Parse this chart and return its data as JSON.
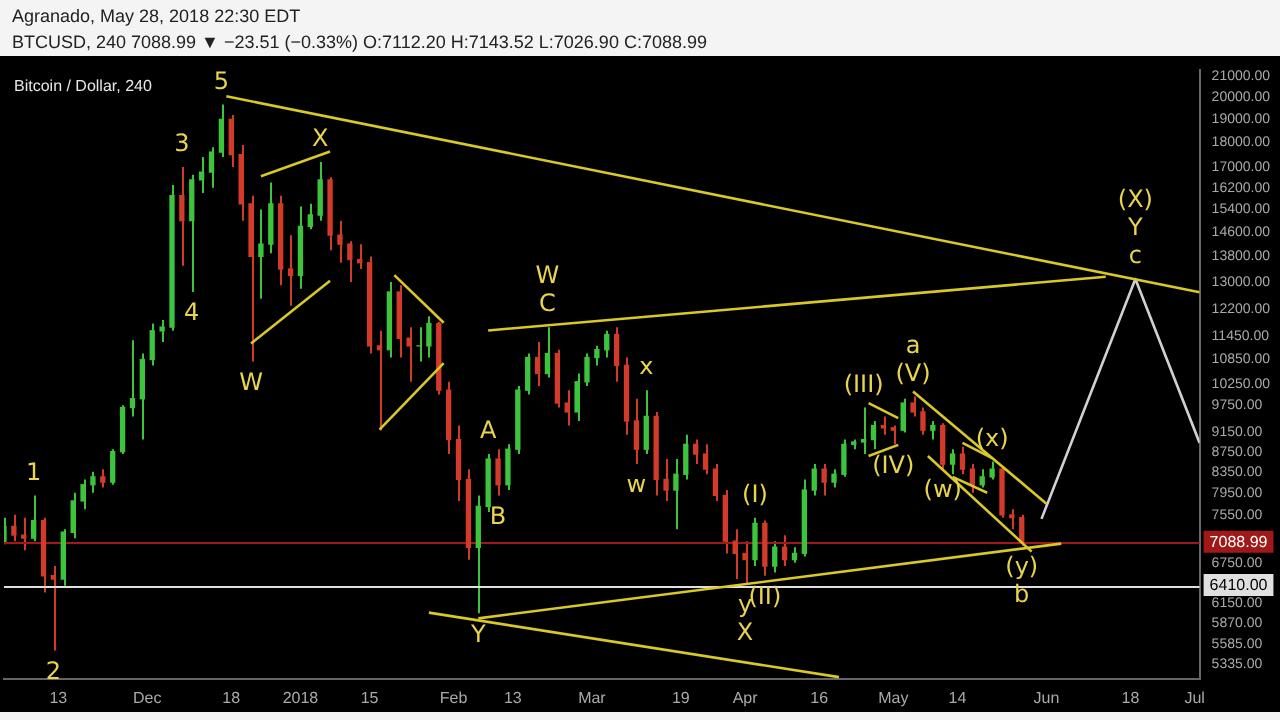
{
  "chart_data": {
    "type": "candlestick",
    "title": "Bitcoin / Dollar, 240",
    "annotations": [
      "Agranado, May 28, 2018 22:30 EDT",
      "BTCUSD, 240  7088.99 ▼ −23.51 (−0.33%)  O:7112.20  H:7143.52  L:7026.90  C:7088.99",
      {
        "text": "1",
        "x": "2017-11-08",
        "y": 7900
      },
      {
        "text": "2",
        "x": "2017-11-12",
        "y": 5500
      },
      {
        "text": "3",
        "x": "2017-12-08",
        "y": 17000
      },
      {
        "text": "4",
        "x": "2017-12-10",
        "y": 12700
      },
      {
        "text": "5",
        "x": "2017-12-16",
        "y": 19666
      },
      {
        "text": "W",
        "x": "2017-12-22",
        "y": 10800
      },
      {
        "text": "X",
        "x": "2018-01-05",
        "y": 17200
      },
      {
        "text": "C",
        "x": "2018-02-20",
        "y": 11700
      },
      {
        "text": "W",
        "x": "2018-02-20",
        "y": 11700
      },
      {
        "text": "A",
        "x": "2018-02-08",
        "y": 8700
      },
      {
        "text": "B",
        "x": "2018-02-10",
        "y": 7900
      },
      {
        "text": "Y",
        "x": "2018-02-06",
        "y": 6000
      },
      {
        "text": "w",
        "x": "2018-03-10",
        "y": 8500
      },
      {
        "text": "x",
        "x": "2018-03-12",
        "y": 10100
      },
      {
        "text": "(I)",
        "x": "2018-04-03",
        "y": 7500
      },
      {
        "text": "y",
        "x": "2018-04-01",
        "y": 6430
      },
      {
        "text": "(II)",
        "x": "2018-04-05",
        "y": 6550
      },
      {
        "text": "X",
        "x": "2018-04-01",
        "y": 6430
      },
      {
        "text": "(III)",
        "x": "2018-04-25",
        "y": 9700
      },
      {
        "text": "(IV)",
        "x": "2018-05-01",
        "y": 8900
      },
      {
        "text": "(V)",
        "x": "2018-05-05",
        "y": 9950
      },
      {
        "text": "a",
        "x": "2018-05-05",
        "y": 9950
      },
      {
        "text": "(x)",
        "x": "2018-05-21",
        "y": 8550
      },
      {
        "text": "(w)",
        "x": "2018-05-11",
        "y": 8400
      },
      {
        "text": "(y)",
        "x": "2018-05-27",
        "y": 7026.9
      },
      {
        "text": "b",
        "x": "2018-05-27",
        "y": 7026.9
      },
      {
        "text": "c",
        "x": "2018-06-19",
        "y": 13090
      },
      {
        "text": "Y",
        "x": "2018-06-19",
        "y": 13090
      },
      {
        "text": "(X)",
        "x": "2018-06-19",
        "y": 13090
      }
    ],
    "x": [
      "2017-11-02",
      "2017-11-04",
      "2017-11-06",
      "2017-11-08",
      "2017-11-10",
      "2017-11-12",
      "2017-11-14",
      "2017-11-16",
      "2017-11-18",
      "2017-11-20",
      "2017-11-22",
      "2017-11-24",
      "2017-11-26",
      "2017-11-28",
      "2017-11-30",
      "2017-12-02",
      "2017-12-04",
      "2017-12-06",
      "2017-12-08",
      "2017-12-10",
      "2017-12-12",
      "2017-12-14",
      "2017-12-16",
      "2017-12-18",
      "2017-12-20",
      "2017-12-22",
      "2017-12-24",
      "2017-12-26",
      "2017-12-28",
      "2017-12-30",
      "2018-01-01",
      "2018-01-03",
      "2018-01-05",
      "2018-01-07",
      "2018-01-09",
      "2018-01-11",
      "2018-01-13",
      "2018-01-15",
      "2018-01-17",
      "2018-01-19",
      "2018-01-21",
      "2018-01-23",
      "2018-01-25",
      "2018-01-27",
      "2018-01-29",
      "2018-01-31",
      "2018-02-02",
      "2018-02-04",
      "2018-02-06",
      "2018-02-08",
      "2018-02-10",
      "2018-02-12",
      "2018-02-14",
      "2018-02-16",
      "2018-02-18",
      "2018-02-20",
      "2018-02-22",
      "2018-02-24",
      "2018-02-26",
      "2018-02-28",
      "2018-03-02",
      "2018-03-04",
      "2018-03-06",
      "2018-03-08",
      "2018-03-10",
      "2018-03-12",
      "2018-03-14",
      "2018-03-16",
      "2018-03-18",
      "2018-03-20",
      "2018-03-22",
      "2018-03-24",
      "2018-03-26",
      "2018-03-28",
      "2018-03-30",
      "2018-04-01",
      "2018-04-03",
      "2018-04-05",
      "2018-04-07",
      "2018-04-09",
      "2018-04-11",
      "2018-04-13",
      "2018-04-15",
      "2018-04-17",
      "2018-04-19",
      "2018-04-21",
      "2018-04-23",
      "2018-04-25",
      "2018-04-27",
      "2018-04-29",
      "2018-05-01",
      "2018-05-03",
      "2018-05-05",
      "2018-05-07",
      "2018-05-09",
      "2018-05-11",
      "2018-05-13",
      "2018-05-15",
      "2018-05-17",
      "2018-05-19",
      "2018-05-21",
      "2018-05-23",
      "2018-05-25",
      "2018-05-27"
    ],
    "ohlc": [
      [
        7100,
        7500,
        7050,
        7350
      ],
      [
        7350,
        7550,
        7100,
        7200
      ],
      [
        7200,
        7500,
        6950,
        7150
      ],
      [
        7150,
        7900,
        7100,
        7450
      ],
      [
        7450,
        7500,
        6300,
        6550
      ],
      [
        6550,
        6700,
        5500,
        6500
      ],
      [
        6500,
        7300,
        6400,
        7250
      ],
      [
        7250,
        7950,
        7150,
        7800
      ],
      [
        7800,
        8200,
        7650,
        8100
      ],
      [
        8100,
        8350,
        7950,
        8250
      ],
      [
        8250,
        8400,
        8050,
        8150
      ],
      [
        8150,
        8800,
        8100,
        8750
      ],
      [
        8750,
        9750,
        8700,
        9700
      ],
      [
        9700,
        11350,
        9500,
        9900
      ],
      [
        9900,
        11000,
        9000,
        10850
      ],
      [
        10850,
        11800,
        10700,
        11600
      ],
      [
        11600,
        11900,
        11300,
        11700
      ],
      [
        11700,
        16300,
        11600,
        15900
      ],
      [
        15900,
        17000,
        13500,
        15000
      ],
      [
        15000,
        16700,
        12700,
        16500
      ],
      [
        16500,
        17400,
        16000,
        16800
      ],
      [
        16800,
        17800,
        16200,
        17600
      ],
      [
        17600,
        19666,
        17400,
        19000
      ],
      [
        19000,
        19200,
        17000,
        17500
      ],
      [
        17500,
        17900,
        15000,
        15600
      ],
      [
        15600,
        15900,
        10800,
        13800
      ],
      [
        13800,
        15400,
        12500,
        14200
      ],
      [
        14200,
        16400,
        13900,
        15600
      ],
      [
        15600,
        15900,
        12900,
        13400
      ],
      [
        13400,
        14500,
        12300,
        13200
      ],
      [
        13200,
        15500,
        12800,
        14800
      ],
      [
        14800,
        15600,
        14700,
        15200
      ],
      [
        15200,
        17200,
        15000,
        16500
      ],
      [
        16500,
        16600,
        14000,
        14500
      ],
      [
        14500,
        15000,
        13600,
        14200
      ],
      [
        14200,
        14300,
        13000,
        13700
      ],
      [
        13700,
        14200,
        13400,
        13600
      ],
      [
        13600,
        13800,
        11000,
        11200
      ],
      [
        11200,
        11600,
        9200,
        11100
      ],
      [
        11100,
        13000,
        10900,
        12700
      ],
      [
        12700,
        12900,
        10900,
        11400
      ],
      [
        11400,
        11700,
        10300,
        11200
      ],
      [
        11200,
        11700,
        10800,
        11200
      ],
      [
        11200,
        12000,
        10900,
        11800
      ],
      [
        11800,
        11850,
        10000,
        10100
      ],
      [
        10100,
        10300,
        8700,
        9000
      ],
      [
        9000,
        9300,
        7800,
        8200
      ],
      [
        8200,
        8400,
        6800,
        7000
      ],
      [
        7000,
        7900,
        6000,
        7700
      ],
      [
        7700,
        8700,
        7600,
        8600
      ],
      [
        8600,
        8800,
        7900,
        8100
      ],
      [
        8100,
        8900,
        8000,
        8800
      ],
      [
        8800,
        10200,
        8700,
        10100
      ],
      [
        10100,
        11000,
        10000,
        10900
      ],
      [
        10900,
        11300,
        10200,
        10500
      ],
      [
        10500,
        11700,
        10400,
        11000
      ],
      [
        11000,
        11100,
        9700,
        9800
      ],
      [
        9800,
        10100,
        9300,
        9600
      ],
      [
        9600,
        10500,
        9400,
        10300
      ],
      [
        10300,
        11000,
        10200,
        10900
      ],
      [
        10900,
        11200,
        10700,
        11100
      ],
      [
        11100,
        11600,
        10900,
        11500
      ],
      [
        11500,
        11700,
        10300,
        10700
      ],
      [
        10700,
        10900,
        9100,
        9400
      ],
      [
        9400,
        9900,
        8500,
        8800
      ],
      [
        8800,
        10100,
        8700,
        9500
      ],
      [
        9500,
        9600,
        7900,
        8200
      ],
      [
        8200,
        8600,
        7800,
        8000
      ],
      [
        8000,
        8600,
        7300,
        8300
      ],
      [
        8300,
        9100,
        8200,
        8900
      ],
      [
        8900,
        9000,
        8500,
        8700
      ],
      [
        8700,
        8900,
        8300,
        8400
      ],
      [
        8400,
        8500,
        7800,
        7900
      ],
      [
        7900,
        8000,
        6900,
        7100
      ],
      [
        7100,
        7300,
        6500,
        6900
      ],
      [
        6900,
        7100,
        6430,
        6800
      ],
      [
        6800,
        7500,
        6700,
        7400
      ],
      [
        7400,
        7450,
        6550,
        6700
      ],
      [
        6700,
        7100,
        6600,
        7000
      ],
      [
        7000,
        7200,
        6700,
        6800
      ],
      [
        6800,
        7000,
        6750,
        6900
      ],
      [
        6900,
        8200,
        6850,
        8000
      ],
      [
        8000,
        8500,
        7900,
        8400
      ],
      [
        8400,
        8500,
        7900,
        8150
      ],
      [
        8150,
        8400,
        8050,
        8300
      ],
      [
        8300,
        9000,
        8250,
        8900
      ],
      [
        8900,
        9000,
        8800,
        8950
      ],
      [
        8950,
        9700,
        8700,
        9000
      ],
      [
        9000,
        9400,
        8800,
        9300
      ],
      [
        9300,
        9500,
        9100,
        9250
      ],
      [
        9250,
        9300,
        8900,
        9200
      ],
      [
        9200,
        9900,
        9150,
        9800
      ],
      [
        9800,
        9950,
        9500,
        9600
      ],
      [
        9600,
        9700,
        9100,
        9200
      ],
      [
        9200,
        9400,
        9000,
        9300
      ],
      [
        9300,
        9350,
        8400,
        8500
      ],
      [
        8500,
        8800,
        8300,
        8700
      ],
      [
        8700,
        8850,
        8300,
        8400
      ],
      [
        8400,
        8500,
        7950,
        8100
      ],
      [
        8100,
        8400,
        8050,
        8250
      ],
      [
        8250,
        8550,
        8200,
        8400
      ],
      [
        8400,
        8450,
        7500,
        7550
      ],
      [
        7550,
        7650,
        7300,
        7500
      ],
      [
        7500,
        7550,
        7026.9,
        7088.99
      ]
    ],
    "series": [
      {
        "type": "line",
        "color": "#d9c826",
        "x": [
          "2017-12-17",
          "2018-07-02"
        ],
        "values": [
          20050,
          12690
        ]
      },
      {
        "type": "line",
        "color": "#d9c826",
        "x": [
          "2018-02-08",
          "2018-06-13"
        ],
        "values": [
          11610,
          13160
        ]
      },
      {
        "type": "line",
        "color": "#d9c826",
        "x": [
          "2018-02-06",
          "2018-06-04"
        ],
        "values": [
          5930,
          7060
        ]
      },
      {
        "type": "line",
        "color": "#d9c826",
        "x": [
          "2018-01-27",
          "2018-04-20"
        ],
        "values": [
          6010,
          5170
        ]
      },
      {
        "type": "line",
        "color": "#d9c826",
        "x": [
          "2017-12-24",
          "2018-01-07"
        ],
        "values": [
          16640,
          17630
        ]
      },
      {
        "type": "line",
        "color": "#d9c826",
        "x": [
          "2017-12-22",
          "2018-01-07"
        ],
        "values": [
          11260,
          13040
        ]
      },
      {
        "type": "line",
        "color": "#d9c826",
        "x": [
          "2018-01-20",
          "2018-01-30"
        ],
        "values": [
          13210,
          11820
        ]
      },
      {
        "type": "line",
        "color": "#d9c826",
        "x": [
          "2018-01-17",
          "2018-01-30"
        ],
        "values": [
          9210,
          10760
        ]
      },
      {
        "type": "line",
        "color": "#d9c826",
        "x": [
          "2018-04-26",
          "2018-05-02"
        ],
        "values": [
          9800,
          9460
        ]
      },
      {
        "type": "line",
        "color": "#d9c826",
        "x": [
          "2018-04-26",
          "2018-05-02"
        ],
        "values": [
          8660,
          8890
        ]
      },
      {
        "type": "line",
        "color": "#d9c826",
        "x": [
          "2018-05-05",
          "2018-06-01"
        ],
        "values": [
          10070,
          7750
        ]
      },
      {
        "type": "line",
        "color": "#d9c826",
        "x": [
          "2018-05-08",
          "2018-05-29"
        ],
        "values": [
          8660,
          6930
        ]
      },
      {
        "type": "line",
        "color": "#d9c826",
        "x": [
          "2018-05-13",
          "2018-05-20"
        ],
        "values": [
          8250,
          7950
        ]
      },
      {
        "type": "line",
        "color": "#d9c826",
        "x": [
          "2018-05-15",
          "2018-05-21"
        ],
        "values": [
          8930,
          8620
        ]
      },
      {
        "type": "line",
        "color": "#d0d0d0",
        "x": [
          "2018-05-31",
          "2018-06-19",
          "2018-07-02"
        ],
        "values": [
          7480,
          13090,
          8930
        ]
      }
    ],
    "ref_lines": [
      {
        "axis": "y",
        "value": 7088.99,
        "label": "7088.99",
        "color": "#a01818"
      },
      {
        "axis": "y",
        "value": 6410,
        "label": "6410.00",
        "color": "#e0e0e0"
      }
    ],
    "xlim": [
      "2017-11-02",
      "2018-07-02"
    ],
    "xticks": [
      {
        "value": "2017-11-13",
        "label": "13"
      },
      {
        "value": "2017-12-01",
        "label": "Dec"
      },
      {
        "value": "2017-12-18",
        "label": "18"
      },
      {
        "value": "2018-01-01",
        "label": "2018"
      },
      {
        "value": "2018-01-15",
        "label": "15"
      },
      {
        "value": "2018-02-01",
        "label": "Feb"
      },
      {
        "value": "2018-02-13",
        "label": "13"
      },
      {
        "value": "2018-03-01",
        "label": "Mar"
      },
      {
        "value": "2018-03-19",
        "label": "19"
      },
      {
        "value": "2018-04-01",
        "label": "Apr"
      },
      {
        "value": "2018-04-16",
        "label": "16"
      },
      {
        "value": "2018-05-01",
        "label": "May"
      },
      {
        "value": "2018-05-14",
        "label": "14"
      },
      {
        "value": "2018-06-01",
        "label": "Jun"
      },
      {
        "value": "2018-06-18",
        "label": "18"
      },
      {
        "value": "2018-07-01",
        "label": "Jul"
      }
    ],
    "ylim": [
      5150,
      21300
    ],
    "log": true,
    "yticks": [
      {
        "value": 5335,
        "label": "5335.00"
      },
      {
        "value": 5585,
        "label": "5585.00"
      },
      {
        "value": 5870,
        "label": "5870.00"
      },
      {
        "value": 6150,
        "label": "6150.00"
      },
      {
        "value": 6750,
        "label": "6750.00"
      },
      {
        "value": 7550,
        "label": "7550.00"
      },
      {
        "value": 7950,
        "label": "7950.00"
      },
      {
        "value": 8350,
        "label": "8350.00"
      },
      {
        "value": 8750,
        "label": "8750.00"
      },
      {
        "value": 9150,
        "label": "9150.00"
      },
      {
        "value": 9750,
        "label": "9750.00"
      },
      {
        "value": 10250,
        "label": "10250.00"
      },
      {
        "value": 10850,
        "label": "10850.00"
      },
      {
        "value": 11450,
        "label": "11450.00"
      },
      {
        "value": 12200,
        "label": "12200.00"
      },
      {
        "value": 13000,
        "label": "13000.00"
      },
      {
        "value": 13800,
        "label": "13800.00"
      },
      {
        "value": 14600,
        "label": "14600.00"
      },
      {
        "value": 15400,
        "label": "15400.00"
      },
      {
        "value": 16200,
        "label": "16200.00"
      },
      {
        "value": 17000,
        "label": "17000.00"
      },
      {
        "value": 18000,
        "label": "18000.00"
      },
      {
        "value": 19000,
        "label": "19000.00"
      },
      {
        "value": 20000,
        "label": "20000.00"
      },
      {
        "value": 21000,
        "label": "21000.00"
      }
    ],
    "legend": false,
    "grid": false
  }
}
